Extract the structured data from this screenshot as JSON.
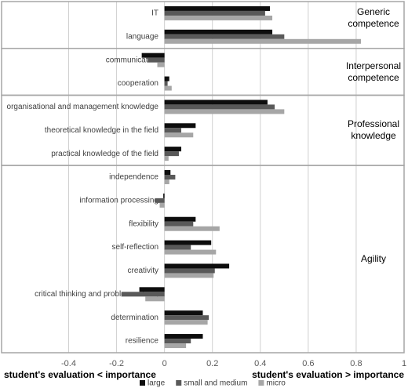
{
  "chart_data": {
    "type": "bar",
    "orientation": "horizontal",
    "groups": [
      {
        "label": "Generic competence",
        "categories": [
          "IT",
          "language"
        ]
      },
      {
        "label": "Interpersonal competence",
        "categories": [
          "communication",
          "cooperation"
        ]
      },
      {
        "label": "Professional knowledge",
        "categories": [
          "organisational and management knowledge",
          "theoretical knowledge in the field",
          "practical knowledge of the field"
        ]
      },
      {
        "label": "Agility",
        "categories": [
          "independence",
          "information processing",
          "flexibility",
          "self-reflection",
          "creativity",
          "critical thinking and problem solving",
          "determination",
          "resilience"
        ]
      }
    ],
    "series": [
      {
        "name": "large",
        "color": "#0d0d0d",
        "values": [
          0.44,
          0.45,
          -0.095,
          0.02,
          0.43,
          0.13,
          0.07,
          0.025,
          -0.005,
          0.13,
          0.195,
          0.27,
          -0.105,
          0.16,
          0.16
        ]
      },
      {
        "name": "small and medium",
        "color": "#595959",
        "values": [
          0.42,
          0.5,
          -0.07,
          0.013,
          0.46,
          0.07,
          0.06,
          0.045,
          -0.04,
          0.12,
          0.11,
          0.21,
          -0.18,
          0.185,
          0.11
        ]
      },
      {
        "name": "micro",
        "color": "#a6a6a6",
        "values": [
          0.45,
          0.82,
          -0.03,
          0.03,
          0.5,
          0.12,
          0.017,
          0.02,
          -0.02,
          0.23,
          0.215,
          0.205,
          -0.08,
          0.18,
          0.09
        ]
      }
    ],
    "xlim": [
      -0.68,
      1
    ],
    "xticks": [
      -0.4,
      -0.2,
      0,
      0.2,
      0.4,
      0.6,
      0.8,
      1
    ],
    "xlabel_left": "student's evaluation < importance",
    "xlabel_right": "student's evaluation > importance",
    "grid": true,
    "legend": "bottom"
  }
}
